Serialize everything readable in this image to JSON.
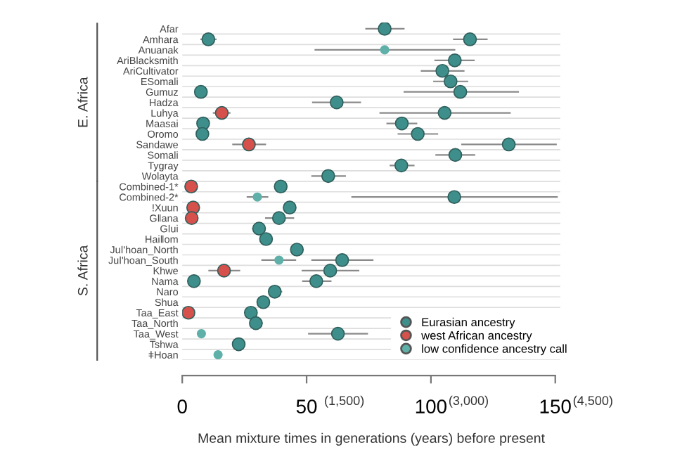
{
  "chart_data": {
    "type": "scatter",
    "orientation": "horizontal",
    "xlabel": "Mean mixture times in generations (years) before present",
    "categories": [
      "Afar",
      "Amhara",
      "Anuanak",
      "AriBlacksmith",
      "AriCultivator",
      "ESomali",
      "Gumuz",
      "Hadza",
      "Luhya",
      "Maasai",
      "Oromo",
      "Sandawe",
      "Somali",
      "Tygray",
      "Wolayta",
      "Combined-1*",
      "Combined-2*",
      "!Xuun",
      "Gǁana",
      "Gǀui",
      "Haiǁom",
      "Juǀ'hoan_North",
      "Juǀ'hoan_South",
      "Khwe",
      "Nama",
      "Naro",
      "Shua",
      "Taa_East",
      "Taa_North",
      "Taa_West",
      "Tshwa",
      "ǂHoan"
    ],
    "series": [
      {
        "name": "Eurasian ancestry",
        "color": "#3e8f8b",
        "values": [
          81.4,
          115.7,
          null,
          109.6,
          104.6,
          107.9,
          111.8,
          62.1,
          105.5,
          88.3,
          94.7,
          131.3,
          109.8,
          88.1,
          58.7,
          39.6,
          109.4,
          43.2,
          38.9,
          30.9,
          33.7,
          46.1,
          64.3,
          59.5,
          53.9,
          37.2,
          32.6,
          27.6,
          29.6,
          62.6,
          22.7,
          null
        ],
        "errors": [
          [
            73.6,
            89.4
          ],
          [
            108.9,
            122.8
          ],
          null,
          [
            101.4,
            117.6
          ],
          [
            95.9,
            113.5
          ],
          [
            100.9,
            115
          ],
          [
            89,
            135.4
          ],
          [
            52.2,
            71.9
          ],
          [
            79.3,
            132.1
          ],
          [
            82.1,
            94.5
          ],
          [
            86.6,
            102.9
          ],
          [
            112.2,
            150.6
          ],
          [
            101.8,
            117.8
          ],
          [
            83.4,
            93.4
          ],
          [
            51.9,
            65.8
          ],
          null,
          [
            68,
            151
          ],
          null,
          [
            33.3,
            45
          ],
          [
            28.1,
            33.3
          ],
          null,
          null,
          [
            51.9,
            76.9
          ],
          [
            48,
            71.2
          ],
          [
            48.2,
            60
          ],
          [
            34.6,
            40.2
          ],
          null,
          null,
          [
            27.2,
            32.4
          ],
          [
            50.6,
            74.7
          ],
          [
            20.7,
            25
          ],
          null
        ]
      },
      {
        "color": "#3e8f8b",
        "values": [
          null,
          10.5,
          null,
          null,
          null,
          null,
          7.5,
          null,
          null,
          8.4,
          8.1,
          null,
          null,
          null,
          null,
          null,
          null,
          null,
          null,
          null,
          null,
          null,
          null,
          null,
          4.7,
          null,
          null,
          null,
          null,
          null,
          null,
          null
        ],
        "errors": [
          null,
          [
            7.3,
            13.8
          ],
          null,
          null,
          null,
          null,
          null,
          null,
          null,
          null,
          null,
          null,
          null,
          null,
          null,
          null,
          null,
          null,
          null,
          null,
          null,
          null,
          null,
          null,
          null,
          null,
          null,
          null,
          null,
          null,
          null,
          null
        ]
      },
      {
        "name": "west African ancestry",
        "color": "#d6504c",
        "values": [
          null,
          null,
          null,
          null,
          null,
          null,
          null,
          null,
          15.9,
          null,
          null,
          26.8,
          null,
          null,
          null,
          3.6,
          null,
          4.4,
          3.8,
          null,
          null,
          null,
          null,
          16.8,
          null,
          null,
          null,
          2.5,
          null,
          null,
          null,
          null
        ],
        "errors": [
          null,
          null,
          null,
          null,
          null,
          null,
          null,
          null,
          [
            12.3,
            19.4
          ],
          null,
          null,
          [
            20.1,
            33.7
          ],
          null,
          null,
          null,
          null,
          null,
          null,
          null,
          null,
          null,
          null,
          null,
          [
            10.5,
            23.3
          ],
          null,
          null,
          null,
          null,
          null,
          null,
          null,
          null
        ]
      },
      {
        "name": "low confidence ancestry call",
        "color": "#5fb0a9",
        "values": [
          null,
          null,
          81.4,
          null,
          null,
          null,
          null,
          null,
          null,
          null,
          null,
          null,
          null,
          null,
          null,
          null,
          30.2,
          null,
          null,
          null,
          null,
          null,
          38.9,
          null,
          null,
          null,
          null,
          null,
          null,
          7.7,
          null,
          14.4
        ],
        "errors": [
          null,
          null,
          [
            53.2,
            109.8
          ],
          null,
          null,
          null,
          null,
          null,
          null,
          null,
          null,
          null,
          null,
          null,
          null,
          null,
          [
            25.9,
            34.6
          ],
          null,
          null,
          null,
          null,
          null,
          [
            31.8,
            45.8
          ],
          null,
          null,
          null,
          null,
          null,
          null,
          null,
          null,
          null
        ]
      }
    ],
    "xlim": [
      0,
      152
    ],
    "xticks": [
      0,
      50,
      100,
      150
    ],
    "grid": "y",
    "legend": "bottom right",
    "marker": "circle",
    "annotations": [
      "E. Africa",
      "S. Africa",
      "(1,500)",
      "(3,000)",
      "(4,500)"
    ]
  }
}
